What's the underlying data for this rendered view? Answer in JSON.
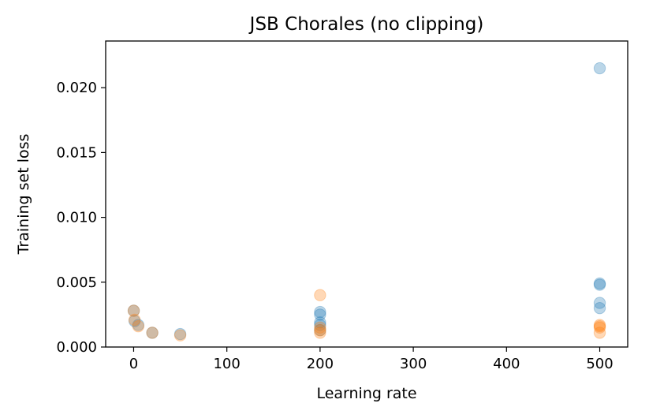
{
  "chart_data": {
    "type": "scatter",
    "title": "JSB Chorales (no clipping)",
    "xlabel": "Learning rate",
    "ylabel": "Training set loss",
    "xlim": [
      -30,
      530
    ],
    "ylim": [
      0.0,
      0.0236
    ],
    "xticks": [
      0,
      100,
      200,
      300,
      400,
      500
    ],
    "yticks": [
      0.0,
      0.005,
      0.01,
      0.015,
      0.02
    ],
    "xtick_labels": [
      "0",
      "100",
      "200",
      "300",
      "400",
      "500"
    ],
    "ytick_labels": [
      "0.000",
      "0.005",
      "0.010",
      "0.015",
      "0.020"
    ],
    "grid": false,
    "legend": "none",
    "series": [
      {
        "color": "#1f77b4",
        "alpha": 0.3,
        "points": [
          [
            0.1,
            0.0028
          ],
          [
            1,
            0.002
          ],
          [
            5,
            0.0017
          ],
          [
            20,
            0.0011
          ],
          [
            50,
            0.001
          ],
          [
            200,
            0.0027
          ],
          [
            200,
            0.0025
          ],
          [
            200,
            0.0019
          ],
          [
            200,
            0.0017
          ],
          [
            200,
            0.0013
          ],
          [
            500,
            0.0215
          ],
          [
            500,
            0.0049
          ],
          [
            500,
            0.0048
          ],
          [
            500,
            0.0034
          ],
          [
            500,
            0.003
          ]
        ]
      },
      {
        "color": "#ff7f0e",
        "alpha": 0.3,
        "points": [
          [
            0.1,
            0.0028
          ],
          [
            1,
            0.0021
          ],
          [
            5,
            0.0016
          ],
          [
            20,
            0.0011
          ],
          [
            50,
            0.0009
          ],
          [
            200,
            0.004
          ],
          [
            200,
            0.0015
          ],
          [
            200,
            0.0013
          ],
          [
            200,
            0.0011
          ],
          [
            500,
            0.0017
          ],
          [
            500,
            0.0016
          ],
          [
            500,
            0.0015
          ],
          [
            500,
            0.0011
          ]
        ]
      }
    ]
  }
}
